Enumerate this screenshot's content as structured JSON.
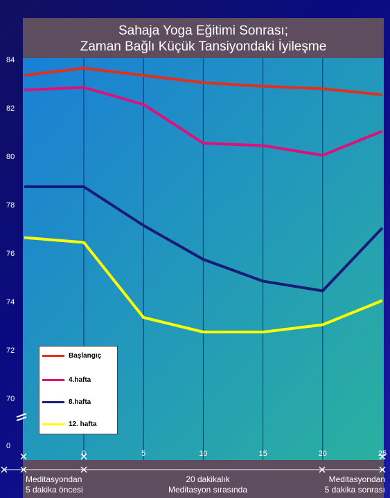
{
  "chart_data": {
    "type": "line",
    "title_line1": "Sahaja Yoga Eğitimi Sonrası;",
    "title_line2": "Zaman Bağlı Küçük Tansiyondaki İyileşme",
    "x": [
      -5,
      0,
      5,
      10,
      15,
      20,
      25
    ],
    "x_tick_labels": [
      "0",
      "5",
      "10",
      "15",
      "20",
      "25"
    ],
    "x_tick_values": [
      0,
      5,
      10,
      15,
      20,
      25
    ],
    "y_tick_labels": [
      "84",
      "82",
      "80",
      "78",
      "76",
      "74",
      "72",
      "70",
      "0"
    ],
    "ylim": [
      70,
      84
    ],
    "axis_break": true,
    "series": [
      {
        "name": "Başlangıç",
        "color": "#e0301e",
        "values": [
          83.4,
          83.7,
          83.4,
          83.1,
          82.95,
          82.85,
          82.6
        ]
      },
      {
        "name": "4.hafta",
        "color": "#e0107a",
        "values": [
          82.8,
          82.9,
          82.2,
          80.6,
          80.5,
          80.1,
          81.1
        ]
      },
      {
        "name": "8.hafta",
        "color": "#1a1a78",
        "values": [
          78.8,
          78.8,
          77.2,
          75.8,
          74.9,
          74.5,
          77.1
        ]
      },
      {
        "name": "12. hafta",
        "color": "#ffff00",
        "values": [
          76.7,
          76.5,
          73.4,
          72.8,
          72.8,
          73.1,
          74.1
        ]
      }
    ],
    "grid": true,
    "legend_position": "bottom-left",
    "x_group_labels": [
      {
        "line1": "Meditasyondan",
        "line2": "5 dakika öncesi"
      },
      {
        "line1": "20 dakikalık",
        "line2": "Meditasyon sırasında"
      },
      {
        "line1": "Meditasyondan",
        "line2": "5 dakika sonrası"
      }
    ]
  }
}
